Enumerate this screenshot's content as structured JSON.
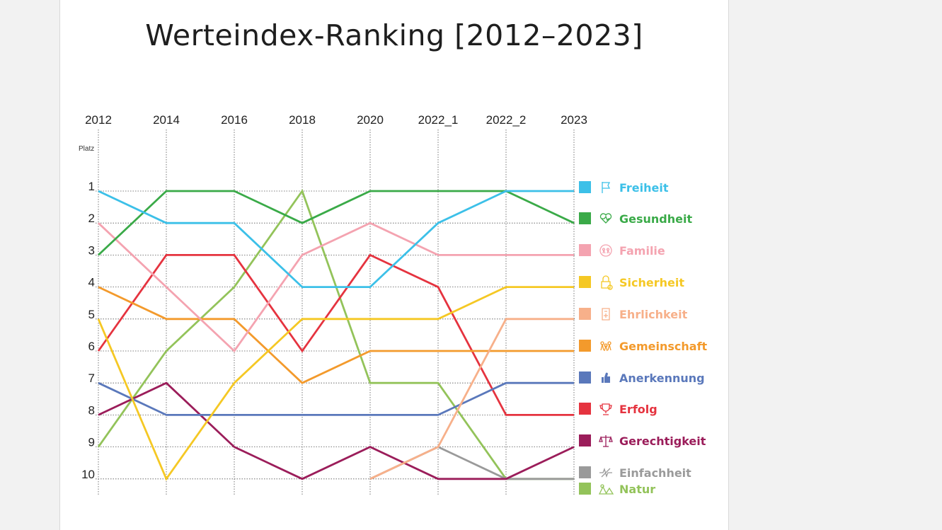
{
  "chart_data": {
    "type": "line",
    "title": "Werteindex-Ranking [2012–2023]",
    "ylabel": "Platz",
    "x": [
      "2012",
      "2014",
      "2016",
      "2018",
      "2020",
      "2022_1",
      "2022_2",
      "2023"
    ],
    "y_ticks": [
      "1",
      "2",
      "3",
      "4",
      "5",
      "6",
      "7",
      "8",
      "9",
      "10"
    ],
    "ylim": [
      1,
      10
    ],
    "y_inverted": true,
    "grid": "dotted",
    "legend_position": "right",
    "series": [
      {
        "name": "Freiheit",
        "color": "#3cc0e8",
        "icon": "flag-icon",
        "values": [
          1,
          2,
          2,
          4,
          4,
          2,
          1,
          1
        ]
      },
      {
        "name": "Gesundheit",
        "color": "#3aaa48",
        "icon": "heart-icon",
        "values": [
          3,
          1,
          1,
          2,
          1,
          1,
          1,
          2
        ]
      },
      {
        "name": "Familie",
        "color": "#f4a3b0",
        "icon": "family-icon",
        "values": [
          2,
          4,
          6,
          3,
          2,
          3,
          3,
          3
        ]
      },
      {
        "name": "Sicherheit",
        "color": "#f5c824",
        "icon": "lock-icon",
        "values": [
          5,
          10,
          7,
          5,
          5,
          5,
          4,
          4
        ]
      },
      {
        "name": "Ehrlichkeit",
        "color": "#f7b08a",
        "icon": "document-icon",
        "values": [
          null,
          null,
          null,
          null,
          10,
          9,
          5,
          5
        ]
      },
      {
        "name": "Gemeinschaft",
        "color": "#f39a2c",
        "icon": "community-icon",
        "values": [
          4,
          5,
          5,
          7,
          6,
          6,
          6,
          6
        ]
      },
      {
        "name": "Anerkennung",
        "color": "#5a78bb",
        "icon": "thumbs-up-icon",
        "values": [
          7,
          8,
          8,
          8,
          8,
          8,
          7,
          7
        ]
      },
      {
        "name": "Erfolg",
        "color": "#e5333f",
        "icon": "trophy-icon",
        "values": [
          6,
          3,
          3,
          6,
          3,
          4,
          8,
          8
        ]
      },
      {
        "name": "Gerechtigkeit",
        "color": "#9b1d5a",
        "icon": "scales-icon",
        "values": [
          8,
          7,
          9,
          10,
          9,
          10,
          10,
          9
        ]
      },
      {
        "name": "Einfachheit",
        "color": "#9a9a9a",
        "icon": "simplicity-icon",
        "values": [
          null,
          null,
          null,
          null,
          10,
          9,
          10,
          10
        ]
      },
      {
        "name": "Natur",
        "color": "#93c35a",
        "icon": "nature-icon",
        "values": [
          9,
          6,
          4,
          1,
          7,
          7,
          10,
          10
        ]
      }
    ]
  }
}
